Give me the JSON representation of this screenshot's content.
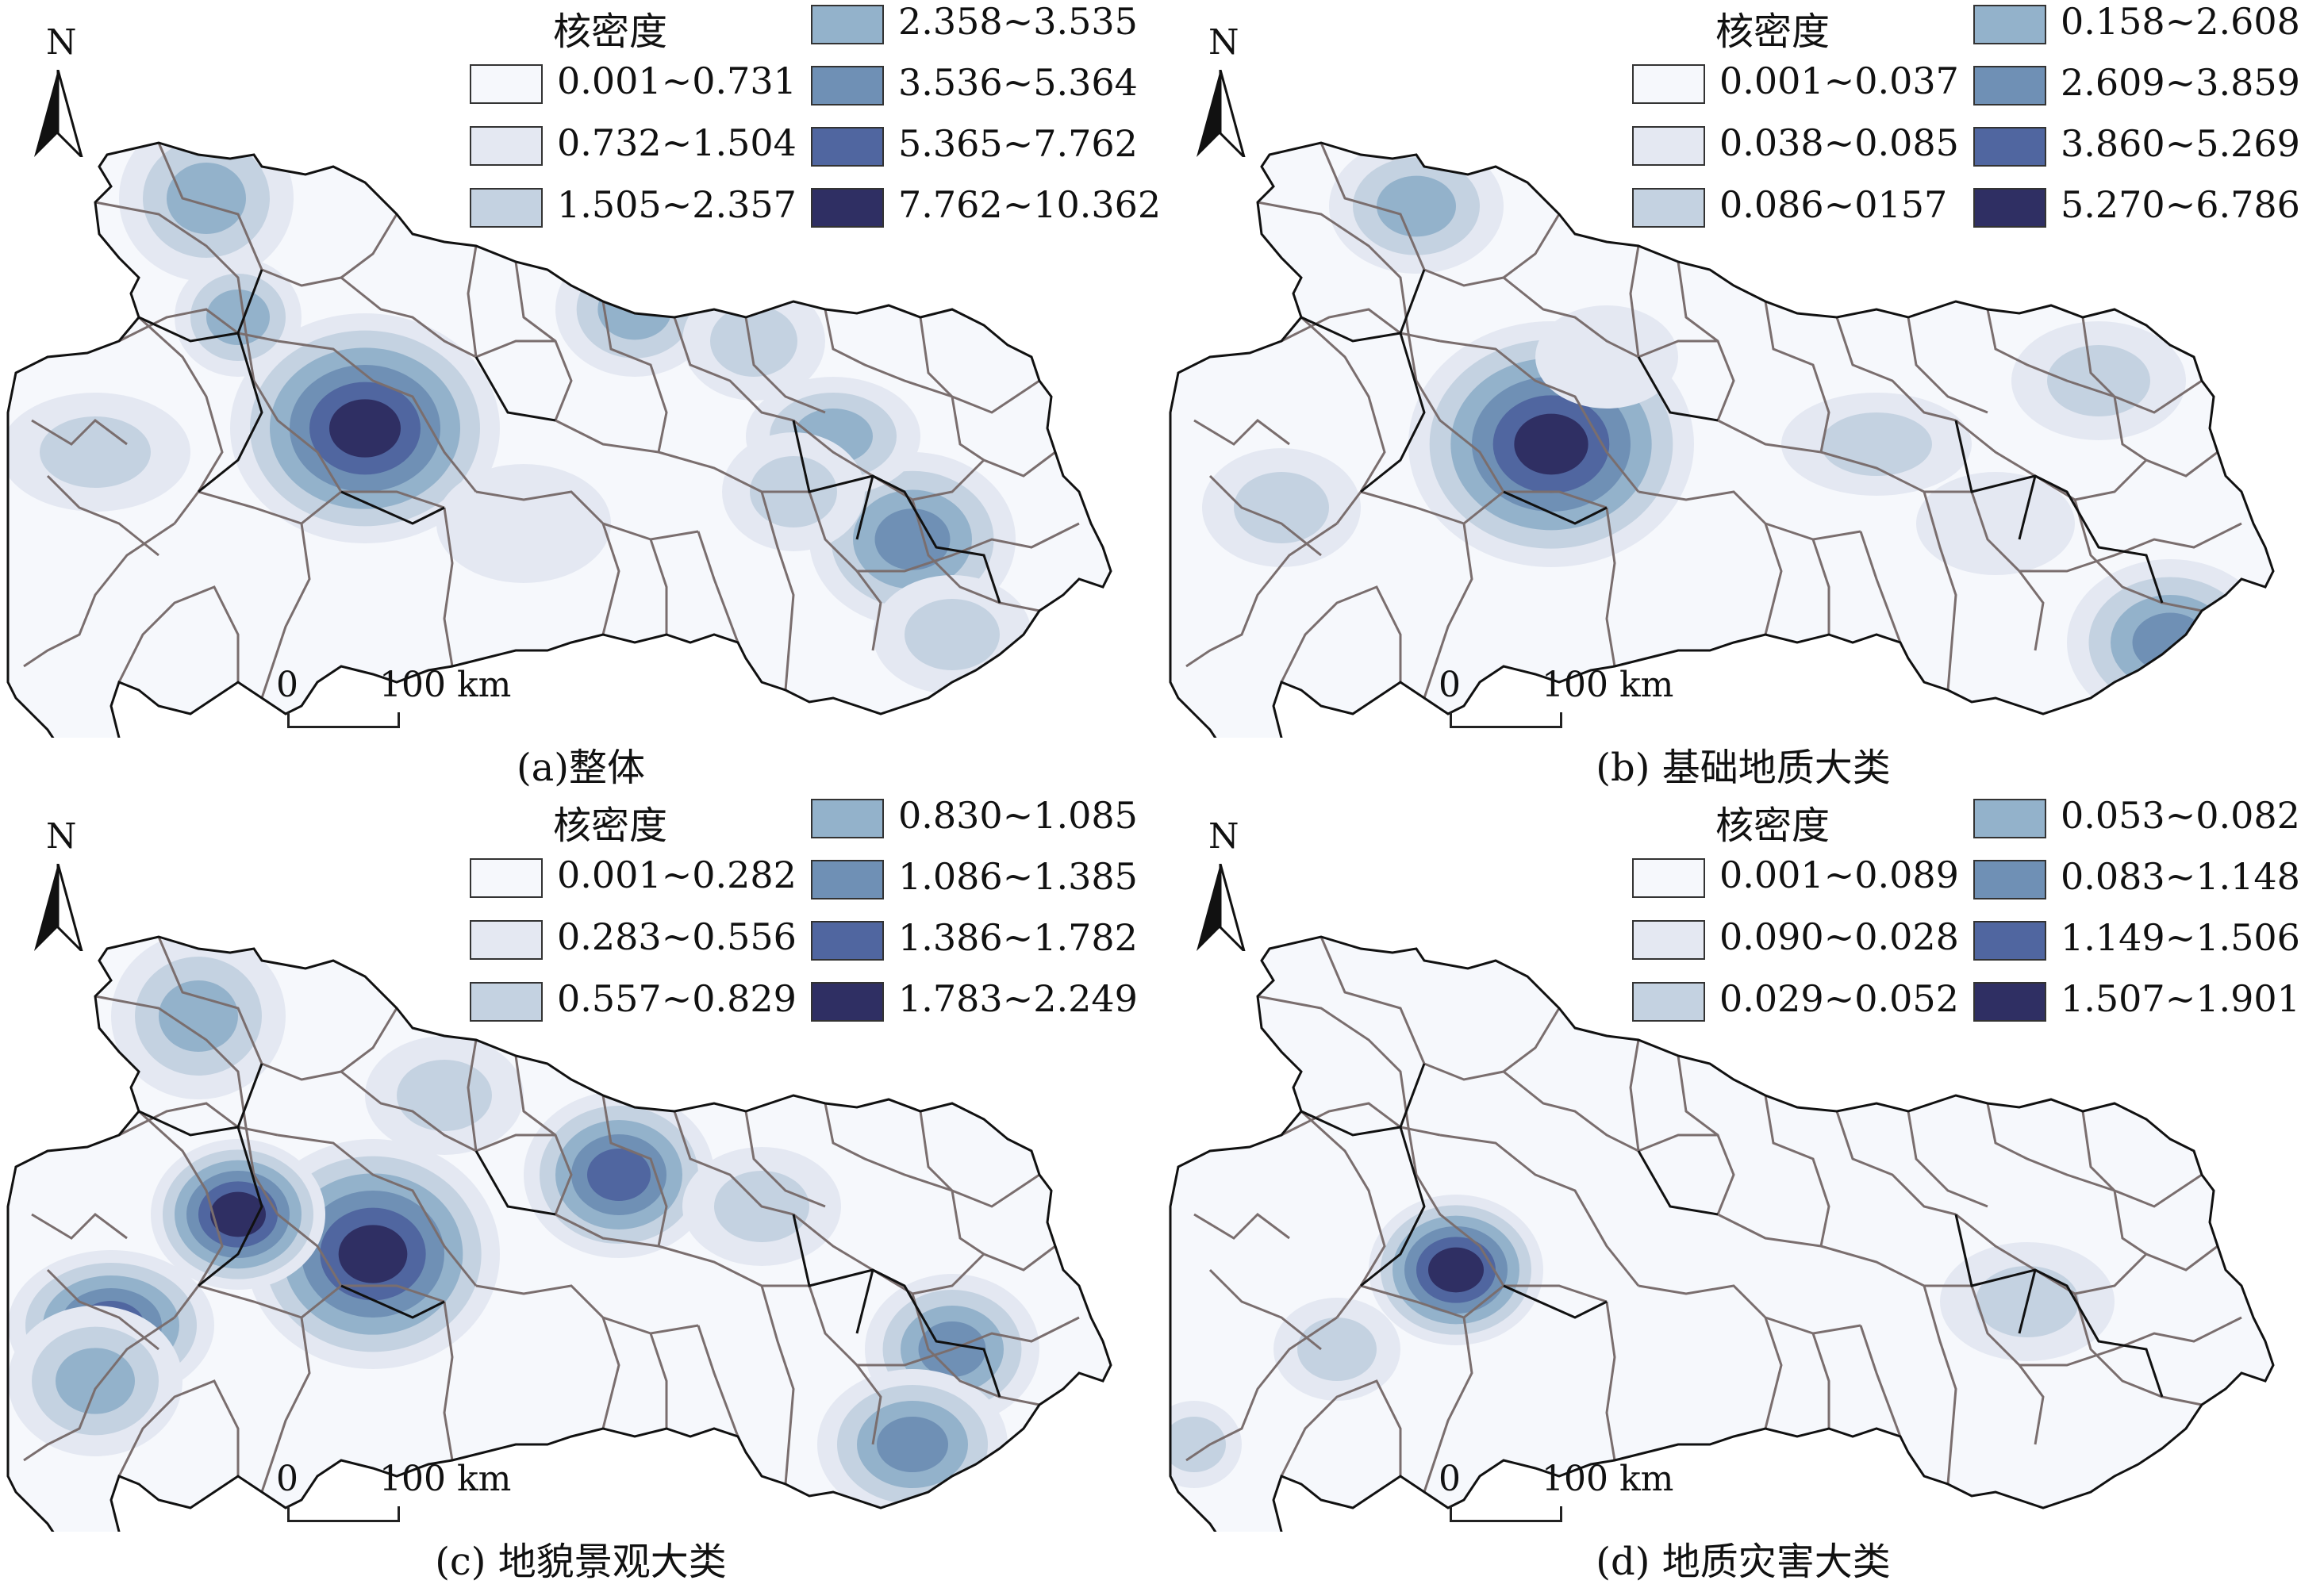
{
  "colors": {
    "class_fills": [
      "#f6f8fc",
      "#e4e8f2",
      "#c4d2e1",
      "#93b2cb",
      "#6f90b5",
      "#5066a0",
      "#2f2f63"
    ],
    "district_lines": "#7a6e6e",
    "outline": "#111111"
  },
  "map_common": {
    "north_label": "N",
    "north_icon": "north-arrow-icon",
    "scale_zero": "0",
    "scale_distance": "100 km",
    "legend_title": "核密度"
  },
  "panels": [
    {
      "caption": "(a)整体",
      "legend": [
        "0.001~0.731",
        "0.732~1.504",
        "1.505~2.357",
        "2.358~3.535",
        "3.536~5.364",
        "5.365~7.762",
        "7.762~10.362"
      ]
    },
    {
      "caption": "(b) 基础地质大类",
      "legend": [
        "0.001~0.037",
        "0.038~0.085",
        "0.086~0157",
        "0.158~2.608",
        "2.609~3.859",
        "3.860~5.269",
        "5.270~6.786"
      ]
    },
    {
      "caption": "(c) 地貌景观大类",
      "legend": [
        "0.001~0.282",
        "0.283~0.556",
        "0.557~0.829",
        "0.830~1.085",
        "1.086~1.385",
        "1.386~1.782",
        "1.783~2.249"
      ]
    },
    {
      "caption": "(d) 地质灾害大类",
      "legend": [
        "0.001~0.089",
        "0.090~0.028",
        "0.029~0.052",
        "0.053~0.082",
        "0.083~1.148",
        "1.149~1.506",
        "1.507~1.901"
      ]
    }
  ]
}
